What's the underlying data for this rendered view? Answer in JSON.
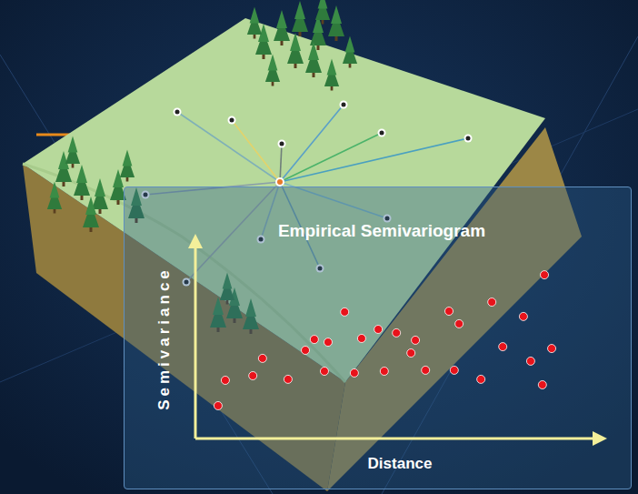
{
  "chart_data": {
    "type": "scatter",
    "title": "Empirical Semivariogram",
    "x_label": "Distance",
    "y_label": "Semivariance",
    "x": [
      5.6,
      7.4,
      14.2,
      16.6,
      22.9,
      27.2,
      29.4,
      32.8,
      36.9,
      31.9,
      39.3,
      41.1,
      45.2,
      49.7,
      46.7,
      53.3,
      54.4,
      56.9,
      62.7,
      64.0,
      65.2,
      70.6,
      73.3,
      76.0,
      81.1,
      82.9,
      86.3,
      85.8,
      88.1
    ],
    "values": [
      16.6,
      29.5,
      31.8,
      40.6,
      30.0,
      44.7,
      50.2,
      48.8,
      64.1,
      34.1,
      33.2,
      50.7,
      55.3,
      53.5,
      34.1,
      43.3,
      49.8,
      34.6,
      64.5,
      34.6,
      58.1,
      30.0,
      69.1,
      46.5,
      61.8,
      39.2,
      82.9,
      27.2,
      45.6
    ],
    "color": "#e8131b",
    "xlim": [
      0,
      100
    ],
    "ylim": [
      0,
      100
    ],
    "tick_labels": false,
    "grid": false
  }
}
